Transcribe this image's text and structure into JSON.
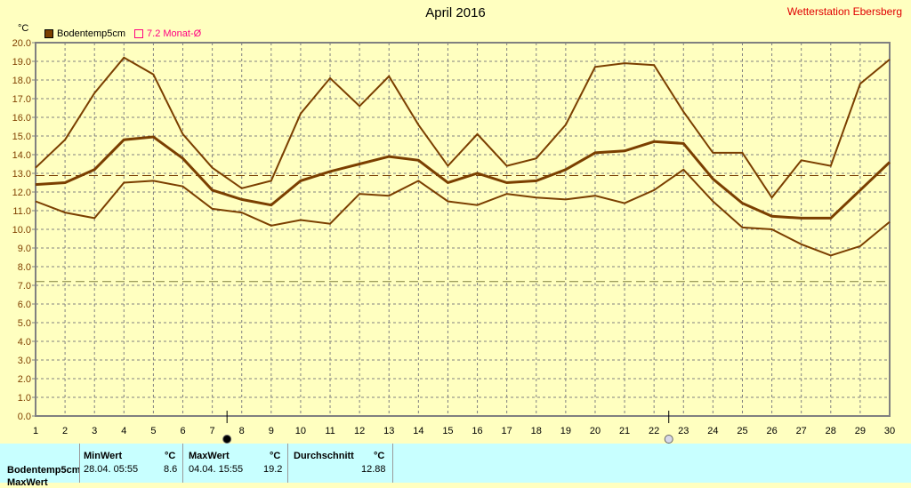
{
  "title": "April 2016",
  "station": "Wetterstation Ebersberg",
  "unit": "°C",
  "legend": [
    {
      "label": "Bodentemp5cm",
      "color": "#7b3f00"
    },
    {
      "label": "7.2 Monat-Ø",
      "color": "#ff0080"
    }
  ],
  "chart_data": {
    "type": "line",
    "x": [
      1,
      2,
      3,
      4,
      5,
      6,
      7,
      8,
      9,
      10,
      11,
      12,
      13,
      14,
      15,
      16,
      17,
      18,
      19,
      20,
      21,
      22,
      23,
      24,
      25,
      26,
      27,
      28,
      29,
      30
    ],
    "ylim": [
      0,
      20
    ],
    "xlim": [
      1,
      30
    ],
    "grid": true,
    "legend_position": "top-left",
    "yticks": [
      "0.0",
      "1.0",
      "2.0",
      "3.0",
      "4.0",
      "5.0",
      "6.0",
      "7.0",
      "8.0",
      "9.0",
      "10.0",
      "11.0",
      "12.0",
      "13.0",
      "14.0",
      "15.0",
      "16.0",
      "17.0",
      "18.0",
      "19.0",
      "20.0"
    ],
    "series": [
      {
        "name": "Bodentemp5cm",
        "role": "mean",
        "color": "#7b3f00",
        "values": [
          12.4,
          12.5,
          13.2,
          14.8,
          14.95,
          13.8,
          12.1,
          11.6,
          11.3,
          12.6,
          13.1,
          13.5,
          13.9,
          13.7,
          12.5,
          13.0,
          12.5,
          12.6,
          13.2,
          14.1,
          14.2,
          14.7,
          14.6,
          12.7,
          11.4,
          10.7,
          10.6,
          10.6,
          12.1,
          13.6
        ]
      },
      {
        "role": "max",
        "color": "#7b3f00",
        "values": [
          13.3,
          14.8,
          17.3,
          19.2,
          18.3,
          15.1,
          13.3,
          12.2,
          12.6,
          16.2,
          18.1,
          16.6,
          18.2,
          15.6,
          13.4,
          15.1,
          13.4,
          13.8,
          15.6,
          18.7,
          18.9,
          18.8,
          16.3,
          14.1,
          14.1,
          11.7,
          13.7,
          13.4,
          17.8,
          19.1
        ]
      },
      {
        "role": "min",
        "color": "#7b3f00",
        "values": [
          11.5,
          10.9,
          10.6,
          12.5,
          12.6,
          12.3,
          11.1,
          10.9,
          10.2,
          10.5,
          10.3,
          11.9,
          11.8,
          12.6,
          11.5,
          11.3,
          11.9,
          11.7,
          11.6,
          11.8,
          11.4,
          12.1,
          13.2,
          11.5,
          10.1,
          10.0,
          9.2,
          8.6,
          9.1,
          10.4
        ]
      }
    ],
    "reference_lines": [
      {
        "value": 12.88,
        "color": "#7b3f00"
      },
      {
        "value": 7.2,
        "color": "#808040"
      }
    ],
    "markers": [
      {
        "x": 7.5,
        "icon": "new-moon-icon"
      },
      {
        "x": 22.5,
        "icon": "full-moon-icon"
      }
    ]
  },
  "table": {
    "headers": {
      "min": "MinWert",
      "max": "MaxWert",
      "avg": "Durchschnitt",
      "unit": "°C"
    },
    "rows": [
      {
        "label": "Bodentemp5cm",
        "min_time": "28.04.  05:55",
        "min": "8.6",
        "max_time": "04.04.  15:55",
        "max": "19.2",
        "avg": "12.88"
      },
      {
        "label": "MaxWert"
      }
    ]
  }
}
